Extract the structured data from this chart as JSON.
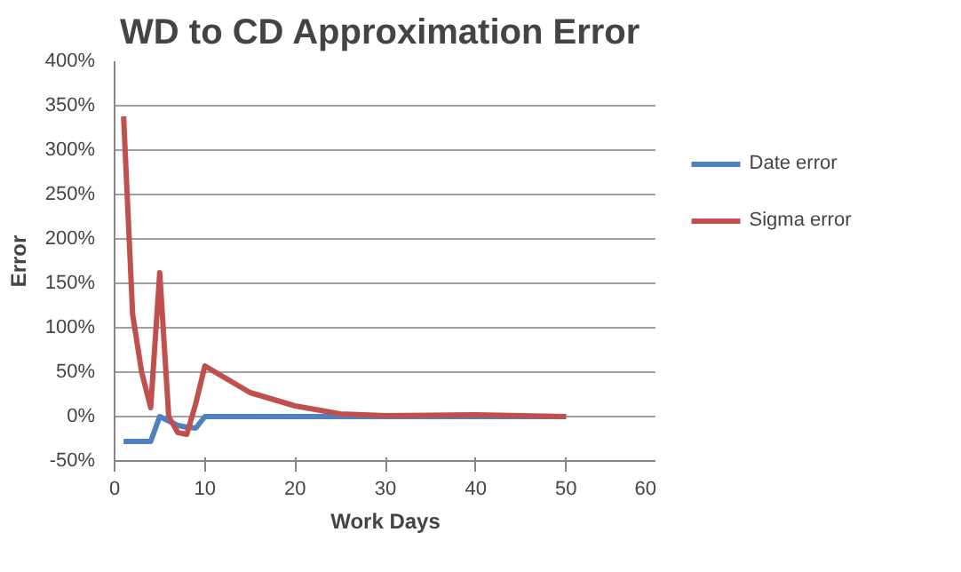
{
  "chart_data": {
    "type": "line",
    "title": "WD to CD  Approximation Error",
    "xlabel": "Work Days",
    "ylabel": "Error",
    "xlim": [
      0,
      60
    ],
    "xticks": [
      0,
      10,
      20,
      30,
      40,
      50,
      60
    ],
    "ylim": [
      -50,
      400
    ],
    "yticks": [
      {
        "value": -50,
        "label": "-50%"
      },
      {
        "value": 0,
        "label": "0%"
      },
      {
        "value": 50,
        "label": "50%"
      },
      {
        "value": 100,
        "label": "100%"
      },
      {
        "value": 150,
        "label": "150%"
      },
      {
        "value": 200,
        "label": "200%"
      },
      {
        "value": 250,
        "label": "250%"
      },
      {
        "value": 300,
        "label": "300%"
      },
      {
        "value": 350,
        "label": "350%"
      },
      {
        "value": 400,
        "label": "400%"
      }
    ],
    "grid": "y",
    "legend": "right",
    "marker": "none",
    "line_style": "solid",
    "series": [
      {
        "name": "Date error",
        "color": "#4f81bd",
        "x": [
          1,
          2,
          3,
          4,
          5,
          6,
          7,
          8,
          9,
          10,
          15,
          20,
          25,
          30,
          40,
          50
        ],
        "values": [
          -28,
          -28,
          -28,
          -28,
          0,
          -5,
          -10,
          -12,
          -13,
          0,
          0,
          0,
          0,
          0,
          0,
          0
        ]
      },
      {
        "name": "Sigma error",
        "color": "#c0504d",
        "x": [
          1,
          2,
          3,
          4,
          5,
          6,
          7,
          8,
          9,
          10,
          15,
          20,
          25,
          30,
          40,
          50
        ],
        "values": [
          338,
          115,
          50,
          10,
          162,
          0,
          -18,
          -20,
          15,
          57,
          27,
          12,
          3,
          1,
          2,
          0
        ]
      }
    ]
  }
}
